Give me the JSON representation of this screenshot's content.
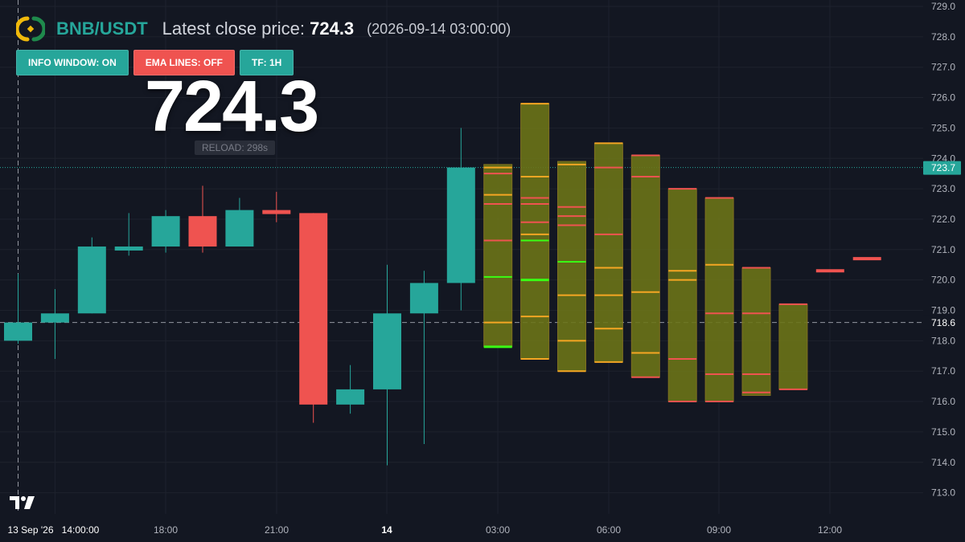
{
  "header": {
    "pair": "BNB/USDT",
    "close_label": "Latest close price:",
    "close_value": "724.3",
    "timestamp": "(2026-09-14 03:00:00)"
  },
  "buttons": {
    "info_window": "INFO WINDOW: ON",
    "ema_lines": "EMA LINES: OFF",
    "timeframe": "TF: 1H"
  },
  "big_price": "724.3",
  "reload": "RELOAD: 298s",
  "colors": {
    "background": "#131722",
    "up": "#26a69a",
    "down": "#ef5350",
    "forecast_fill": "#6b7418",
    "forecast_line_orange": "#f5a623",
    "forecast_line_green": "#39ff14",
    "text": "#d1d4dc"
  },
  "icons": [
    "binance-logo-icon",
    "tradingview-logo-icon"
  ],
  "chart_data": {
    "type": "candlestick",
    "y_axis": {
      "min": 713.0,
      "max": 729.0,
      "ticks": [
        729.0,
        728.0,
        727.0,
        726.0,
        725.0,
        724.0,
        723.0,
        722.0,
        721.0,
        720.0,
        719.0,
        718.0,
        717.0,
        716.0,
        715.0,
        714.0,
        713.0
      ]
    },
    "x_labels": [
      "13 Sep '26",
      "14:00:00",
      "18:00",
      "21:00",
      "14",
      "03:00",
      "06:00",
      "09:00",
      "12:00"
    ],
    "price_markers": {
      "current": "723.7",
      "crosshair": "718.6"
    },
    "crosshair_price": 718.6,
    "current_price_line": 723.7,
    "candles": [
      {
        "o": 718.0,
        "h": 720.2,
        "l": 717.9,
        "c": 718.6
      },
      {
        "o": 718.6,
        "h": 719.7,
        "l": 717.4,
        "c": 718.9
      },
      {
        "o": 718.9,
        "h": 721.4,
        "l": 718.9,
        "c": 721.1
      },
      {
        "o": 721.0,
        "h": 722.2,
        "l": 720.8,
        "c": 721.1
      },
      {
        "o": 721.1,
        "h": 722.3,
        "l": 720.9,
        "c": 722.1
      },
      {
        "o": 722.1,
        "h": 723.1,
        "l": 720.9,
        "c": 721.1
      },
      {
        "o": 721.1,
        "h": 722.7,
        "l": 721.1,
        "c": 722.3
      },
      {
        "o": 722.3,
        "h": 722.9,
        "l": 721.9,
        "c": 722.2
      },
      {
        "o": 722.2,
        "h": 722.2,
        "l": 715.3,
        "c": 715.9
      },
      {
        "o": 715.9,
        "h": 717.2,
        "l": 715.6,
        "c": 716.4
      },
      {
        "o": 716.4,
        "h": 720.5,
        "l": 713.9,
        "c": 718.9
      },
      {
        "o": 718.9,
        "h": 720.3,
        "l": 714.6,
        "c": 719.9
      },
      {
        "o": 719.9,
        "h": 725.0,
        "l": 719.0,
        "c": 723.7
      }
    ],
    "forecast_boxes": [
      {
        "top": 723.8,
        "bottom": 717.8,
        "lines": [
          [
            723.7,
            "#f5a623"
          ],
          [
            723.5,
            "#ef5350"
          ],
          [
            722.8,
            "#f5a623"
          ],
          [
            722.5,
            "#ef5350"
          ],
          [
            721.3,
            "#ef5350"
          ],
          [
            720.1,
            "#39ff14"
          ],
          [
            718.6,
            "#f5a623"
          ],
          [
            717.8,
            "#39ff14"
          ]
        ]
      },
      {
        "top": 725.8,
        "bottom": 717.4,
        "lines": [
          [
            725.8,
            "#f5a623"
          ],
          [
            723.4,
            "#f5a623"
          ],
          [
            722.7,
            "#ef5350"
          ],
          [
            722.5,
            "#ef5350"
          ],
          [
            721.9,
            "#ef5350"
          ],
          [
            721.5,
            "#f5a623"
          ],
          [
            721.3,
            "#39ff14"
          ],
          [
            720.0,
            "#39ff14"
          ],
          [
            718.8,
            "#f5a623"
          ],
          [
            717.4,
            "#f5a623"
          ]
        ]
      },
      {
        "top": 723.9,
        "bottom": 717.0,
        "lines": [
          [
            723.8,
            "#f5a623"
          ],
          [
            722.4,
            "#ef5350"
          ],
          [
            722.1,
            "#ef5350"
          ],
          [
            721.8,
            "#ef5350"
          ],
          [
            720.6,
            "#39ff14"
          ],
          [
            719.5,
            "#f5a623"
          ],
          [
            718.0,
            "#f5a623"
          ],
          [
            717.0,
            "#f5a623"
          ]
        ]
      },
      {
        "top": 724.5,
        "bottom": 717.3,
        "lines": [
          [
            724.5,
            "#f5a623"
          ],
          [
            723.7,
            "#ef5350"
          ],
          [
            721.5,
            "#ef5350"
          ],
          [
            720.4,
            "#f5a623"
          ],
          [
            719.5,
            "#f5a623"
          ],
          [
            718.4,
            "#f5a623"
          ],
          [
            717.3,
            "#f5a623"
          ]
        ]
      },
      {
        "top": 724.1,
        "bottom": 716.8,
        "lines": [
          [
            724.1,
            "#ef5350"
          ],
          [
            723.4,
            "#ef5350"
          ],
          [
            719.6,
            "#f5a623"
          ],
          [
            717.6,
            "#f5a623"
          ],
          [
            716.8,
            "#ef5350"
          ]
        ]
      },
      {
        "top": 723.0,
        "bottom": 716.0,
        "lines": [
          [
            723.0,
            "#ef5350"
          ],
          [
            720.3,
            "#f5a623"
          ],
          [
            720.0,
            "#f5a623"
          ],
          [
            717.4,
            "#ef5350"
          ],
          [
            716.0,
            "#ef5350"
          ]
        ]
      },
      {
        "top": 722.7,
        "bottom": 716.0,
        "lines": [
          [
            722.7,
            "#ef5350"
          ],
          [
            720.5,
            "#f5a623"
          ],
          [
            718.9,
            "#ef5350"
          ],
          [
            716.9,
            "#ef5350"
          ],
          [
            716.0,
            "#ef5350"
          ]
        ]
      },
      {
        "top": 720.4,
        "bottom": 716.2,
        "lines": [
          [
            720.4,
            "#ef5350"
          ],
          [
            718.9,
            "#ef5350"
          ],
          [
            716.9,
            "#ef5350"
          ],
          [
            716.3,
            "#ef5350"
          ]
        ]
      },
      {
        "top": 719.2,
        "bottom": 716.4,
        "lines": [
          [
            719.2,
            "#ef5350"
          ],
          [
            716.4,
            "#ef5350"
          ]
        ]
      }
    ],
    "dashes": [
      720.3,
      720.7
    ]
  }
}
